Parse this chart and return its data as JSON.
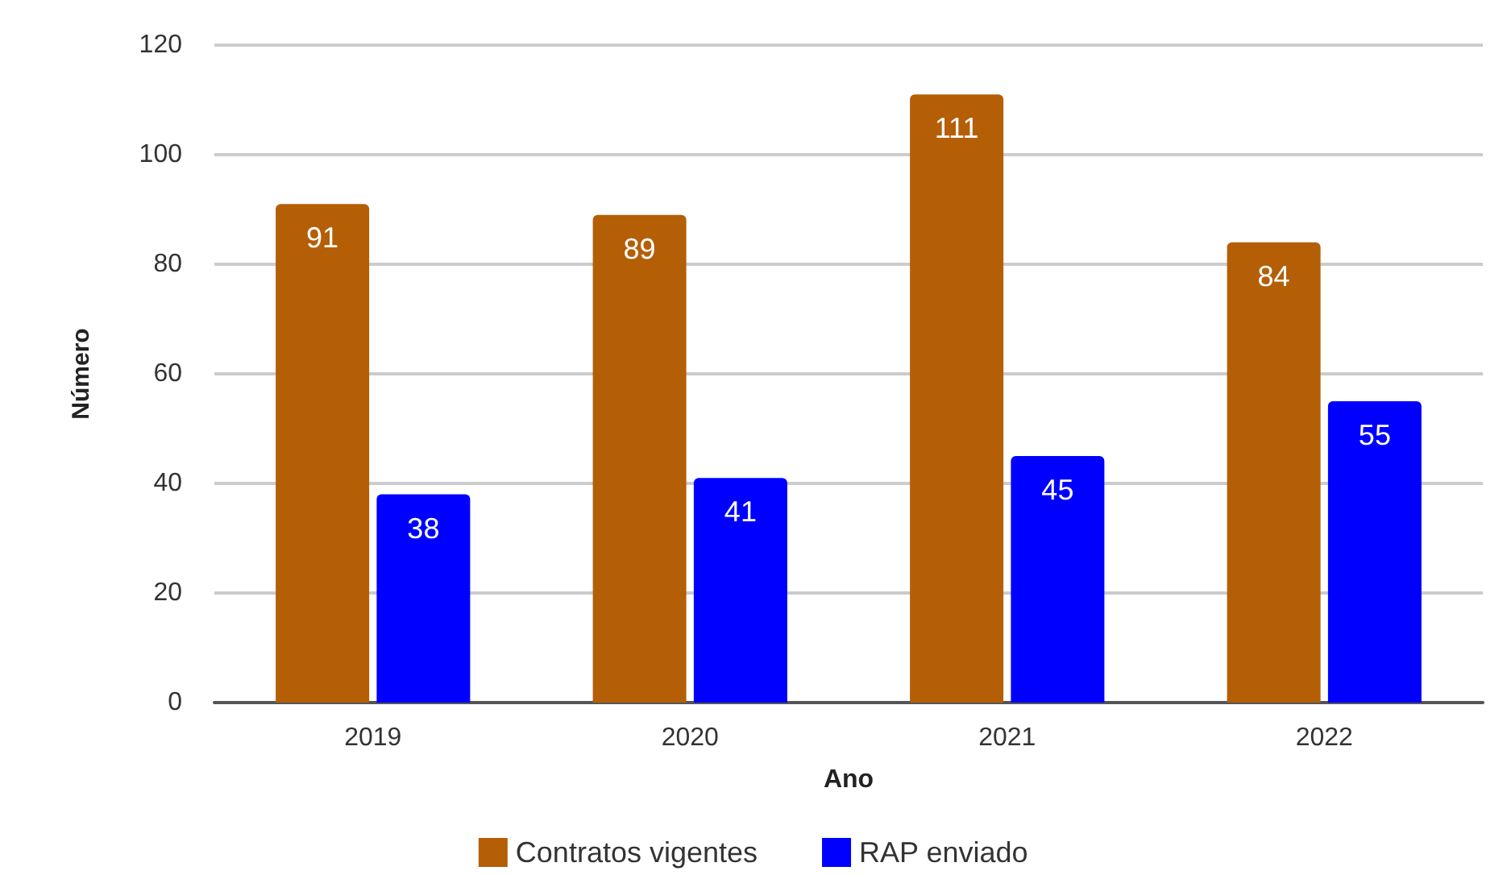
{
  "chart_data": {
    "type": "bar",
    "xlabel": "Ano",
    "ylabel": "Número",
    "categories": [
      "2019",
      "2020",
      "2021",
      "2022"
    ],
    "series": [
      {
        "name": "Contratos vigentes",
        "color": "#b45f06",
        "values": [
          91,
          89,
          111,
          84
        ]
      },
      {
        "name": "RAP enviado",
        "color": "#0000ff",
        "values": [
          38,
          41,
          45,
          55
        ]
      }
    ],
    "ylim": [
      0,
      120
    ],
    "yticks": [
      0,
      20,
      40,
      60,
      80,
      100,
      120
    ],
    "grid": "y",
    "legend": "bottom",
    "data_labels": true
  }
}
